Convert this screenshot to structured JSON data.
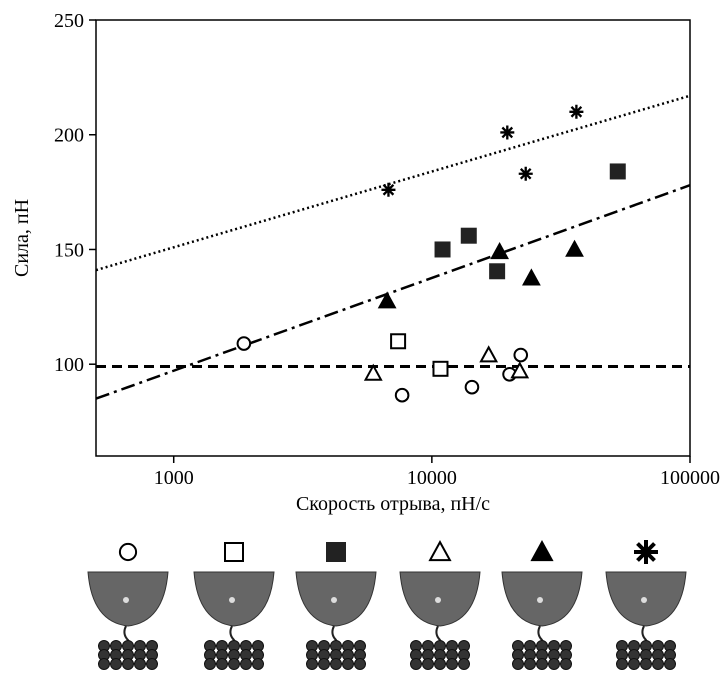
{
  "chart_data": {
    "type": "scatter",
    "x_label": "Скорость отрыва, пН/с",
    "y_label": "Сила, пН",
    "xlog": true,
    "xlim": [
      500,
      100000
    ],
    "ylim": [
      60,
      250
    ],
    "xticks": [
      1000,
      10000,
      100000
    ],
    "yticks": [
      100,
      150,
      200,
      250
    ],
    "series": [
      {
        "marker": "circle-open",
        "color": "#000000",
        "x": [
          1870,
          7670,
          14300,
          20000,
          22100
        ],
        "values": [
          109,
          86.5,
          90,
          95.6,
          104
        ]
      },
      {
        "marker": "square-open",
        "color": "#000000",
        "x": [
          7400,
          10800
        ],
        "values": [
          110,
          98
        ]
      },
      {
        "marker": "square-filled",
        "color": "#222222",
        "x": [
          11000,
          13900,
          17900,
          52500
        ],
        "values": [
          150,
          156,
          140.5,
          184
        ]
      },
      {
        "marker": "triangle-open",
        "color": "#000000",
        "x": [
          5930,
          16600,
          21900
        ],
        "values": [
          96,
          104,
          97
        ]
      },
      {
        "marker": "triangle-filled",
        "color": "#000000",
        "x": [
          6710,
          18300,
          24300,
          35700
        ],
        "values": [
          127.5,
          149,
          137.5,
          150
        ]
      },
      {
        "marker": "star",
        "color": "#000000",
        "x": [
          6790,
          19600,
          23100,
          36300
        ],
        "values": [
          176,
          201,
          183,
          210
        ]
      }
    ],
    "trend_lines": [
      {
        "style": "dotted",
        "x": [
          500,
          100000
        ],
        "y": [
          141,
          217
        ]
      },
      {
        "style": "dash-dot",
        "x": [
          500,
          100000
        ],
        "y": [
          85,
          178
        ]
      },
      {
        "style": "dashed",
        "x": [
          500,
          100000
        ],
        "y": [
          99,
          99
        ]
      }
    ]
  }
}
